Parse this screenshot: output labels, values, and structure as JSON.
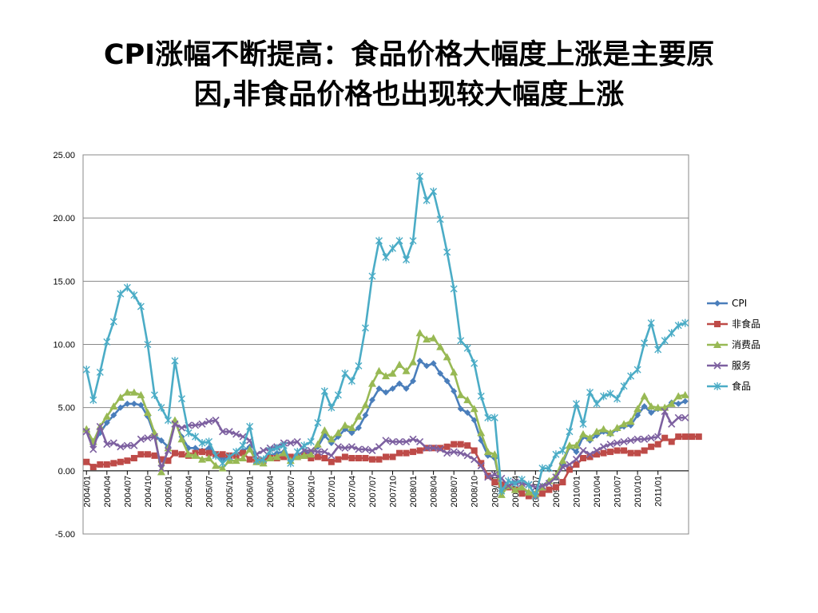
{
  "title_line1": "CPI涨幅不断提高：食品价格大幅度上涨是主要原",
  "title_line2": "因,非食品价格也出现较大幅度上涨",
  "chart_data": {
    "type": "line",
    "ylim": [
      -5,
      25
    ],
    "yticks": [
      "25.00",
      "20.00",
      "15.00",
      "10.00",
      "5.00",
      "0.00",
      "-5.00"
    ],
    "grid": true,
    "legend_position": "right",
    "x_tick_labels": [
      "2004/01",
      "2004/04",
      "2004/07",
      "2004/10",
      "2005/01",
      "2005/04",
      "2005/07",
      "2005/10",
      "2006/01",
      "2006/04",
      "2006/07",
      "2006/10",
      "2007/01",
      "2007/04",
      "2007/07",
      "2007/10",
      "2008/01",
      "2008/04",
      "2008/07",
      "2008/10",
      "2009/01",
      "2009/04",
      "2009/07",
      "2009/10",
      "2010/01",
      "2010/04",
      "2010/07",
      "2010/10",
      "2011/01"
    ],
    "x_start": "2004/01",
    "x_end": "2011/06",
    "series": [
      {
        "name": "CPI",
        "color": "#4A7EBB",
        "marker": "diamond",
        "values": [
          3.2,
          2.1,
          3.0,
          3.8,
          4.4,
          5.0,
          5.3,
          5.3,
          5.2,
          4.3,
          2.8,
          2.4,
          1.9,
          3.9,
          2.7,
          1.8,
          1.8,
          1.6,
          1.8,
          1.3,
          0.9,
          1.2,
          1.3,
          1.6,
          1.9,
          0.9,
          0.8,
          1.2,
          1.4,
          1.5,
          1.0,
          1.3,
          1.5,
          1.4,
          1.9,
          2.8,
          2.2,
          2.7,
          3.3,
          3.0,
          3.4,
          4.4,
          5.6,
          6.5,
          6.2,
          6.5,
          6.9,
          6.5,
          7.1,
          8.7,
          8.3,
          8.5,
          7.7,
          7.1,
          6.3,
          4.9,
          4.6,
          4.0,
          2.4,
          1.2,
          1.0,
          -1.6,
          -1.2,
          -1.5,
          -1.4,
          -1.7,
          -1.8,
          -1.2,
          -0.8,
          -0.5,
          0.6,
          1.9,
          1.5,
          2.7,
          2.4,
          2.8,
          3.1,
          2.9,
          3.3,
          3.5,
          3.6,
          4.4,
          5.1,
          4.6,
          4.9,
          4.9,
          5.4,
          5.3,
          5.5
        ]
      },
      {
        "name": "非食品",
        "color": "#BE4B48",
        "marker": "square",
        "values": [
          0.7,
          0.3,
          0.5,
          0.5,
          0.6,
          0.7,
          0.8,
          1.0,
          1.3,
          1.3,
          1.2,
          0.9,
          0.8,
          1.4,
          1.3,
          1.2,
          1.4,
          1.5,
          1.4,
          1.3,
          1.3,
          1.2,
          1.2,
          1.4,
          0.9,
          0.8,
          0.8,
          1.0,
          1.0,
          1.1,
          1.1,
          1.1,
          1.2,
          1.0,
          1.1,
          1.0,
          0.7,
          0.9,
          1.1,
          1.0,
          1.0,
          1.0,
          0.9,
          0.9,
          1.1,
          1.1,
          1.4,
          1.4,
          1.5,
          1.6,
          1.8,
          1.8,
          1.8,
          1.9,
          2.1,
          2.1,
          2.0,
          1.6,
          0.6,
          -0.4,
          -0.9,
          -1.1,
          -1.3,
          -1.5,
          -1.8,
          -2.0,
          -2.0,
          -1.8,
          -1.5,
          -1.3,
          -0.9,
          0.1,
          0.5,
          1.0,
          1.1,
          1.3,
          1.4,
          1.5,
          1.6,
          1.6,
          1.4,
          1.4,
          1.6,
          1.9,
          2.1,
          2.6,
          2.3,
          2.7,
          2.7,
          2.7,
          2.7
        ]
      },
      {
        "name": "消费品",
        "color": "#98B954",
        "marker": "triangle",
        "values": [
          3.3,
          2.3,
          3.5,
          4.3,
          5.1,
          5.8,
          6.2,
          6.2,
          6.0,
          4.6,
          3.0,
          -0.1,
          1.8,
          4.0,
          2.5,
          1.3,
          1.2,
          0.9,
          1.0,
          0.4,
          0.2,
          0.8,
          0.8,
          1.0,
          1.7,
          0.7,
          0.6,
          1.0,
          1.1,
          1.4,
          0.8,
          1.1,
          1.2,
          1.3,
          2.1,
          3.2,
          2.5,
          3.0,
          3.6,
          3.4,
          4.3,
          5.2,
          6.9,
          7.9,
          7.5,
          7.7,
          8.4,
          7.9,
          8.6,
          10.9,
          10.4,
          10.5,
          9.8,
          9.0,
          7.8,
          6.0,
          5.6,
          4.9,
          3.0,
          1.5,
          1.3,
          -1.9,
          -1.2,
          -1.5,
          -1.3,
          -1.7,
          -1.8,
          -1.3,
          -0.8,
          -0.4,
          0.8,
          2.0,
          2.0,
          2.9,
          2.6,
          3.1,
          3.3,
          3.0,
          3.4,
          3.7,
          3.9,
          4.9,
          5.9,
          5.1,
          5.0,
          5.0,
          5.3,
          5.9,
          6.0
        ]
      },
      {
        "name": "服务",
        "color": "#7D60A0",
        "marker": "x",
        "values": [
          3.1,
          1.7,
          3.5,
          2.1,
          2.2,
          1.9,
          2.0,
          2.0,
          2.5,
          2.6,
          2.7,
          0.2,
          1.6,
          3.7,
          3.4,
          3.6,
          3.6,
          3.7,
          3.9,
          4.0,
          3.1,
          3.1,
          2.9,
          2.7,
          2.4,
          1.3,
          1.6,
          1.8,
          1.9,
          2.2,
          2.2,
          2.3,
          1.6,
          1.6,
          1.5,
          1.5,
          1.2,
          1.9,
          1.8,
          1.9,
          1.7,
          1.7,
          1.6,
          1.9,
          2.4,
          2.3,
          2.3,
          2.3,
          2.5,
          2.3,
          1.8,
          1.8,
          1.7,
          1.4,
          1.5,
          1.4,
          1.2,
          0.9,
          0.4,
          -0.5,
          -0.3,
          -0.6,
          -1.2,
          -0.9,
          -1.0,
          -1.1,
          -1.3,
          -1.2,
          -1.0,
          -0.5,
          0.3,
          0.5,
          0.9,
          1.6,
          1.3,
          1.6,
          1.9,
          2.1,
          2.2,
          2.3,
          2.4,
          2.5,
          2.5,
          2.6,
          2.7,
          4.7,
          3.7,
          4.2,
          4.2
        ]
      },
      {
        "name": "食品",
        "color": "#4BACC6",
        "marker": "star",
        "values": [
          8.0,
          5.6,
          7.8,
          10.2,
          11.8,
          14.0,
          14.5,
          13.9,
          13.0,
          10.0,
          6.0,
          5.0,
          4.0,
          8.7,
          5.7,
          3.0,
          2.7,
          2.2,
          2.3,
          1.2,
          0.6,
          1.1,
          1.5,
          2.0,
          3.5,
          0.8,
          0.9,
          1.6,
          1.8,
          2.0,
          0.6,
          1.5,
          2.0,
          2.3,
          3.8,
          6.3,
          5.0,
          6.0,
          7.7,
          7.1,
          8.3,
          11.3,
          15.4,
          18.2,
          16.9,
          17.6,
          18.2,
          16.7,
          18.2,
          23.3,
          21.4,
          22.1,
          19.9,
          17.3,
          14.4,
          10.3,
          9.7,
          8.5,
          5.9,
          4.2,
          4.2,
          -1.6,
          -0.8,
          -1.0,
          -0.7,
          -1.1,
          -2.0,
          0.2,
          0.2,
          1.3,
          1.6,
          3.1,
          5.3,
          3.7,
          6.2,
          5.3,
          5.9,
          6.1,
          5.7,
          6.7,
          7.5,
          8.0,
          10.1,
          11.7,
          9.6,
          10.3,
          10.9,
          11.5,
          11.7
        ]
      }
    ]
  }
}
